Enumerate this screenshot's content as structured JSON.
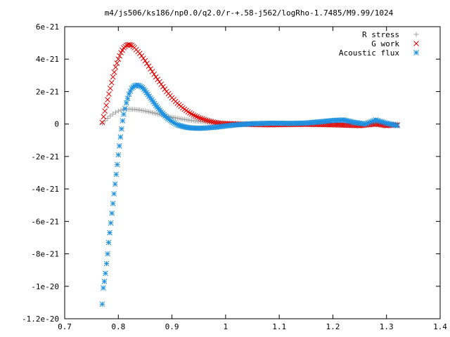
{
  "chart_data": {
    "type": "scatter",
    "title": "m4/js506/ks186/np0.0/q2.0/r-+.58-j562/logRho-1.7485/M9.99/1024",
    "xlabel": "",
    "ylabel": "",
    "xlim": [
      0.7,
      1.4
    ],
    "ylim": [
      -1.2e-20,
      6e-21
    ],
    "grid": false,
    "legend_position": "top-right",
    "x_ticks": [
      0.7,
      0.8,
      0.9,
      1.0,
      1.1,
      1.2,
      1.3,
      1.4
    ],
    "x_tick_labels": [
      "0.7",
      "0.8",
      "0.9",
      "1",
      "1.1",
      "1.2",
      "1.3",
      "1.4"
    ],
    "y_ticks": [
      6e-21,
      4e-21,
      2e-21,
      0,
      -2e-21,
      -4e-21,
      -6e-21,
      -8e-21,
      -1e-20,
      -1.2e-20
    ],
    "y_tick_labels": [
      "6e-21",
      "4e-21",
      "2e-21",
      "0",
      "-2e-21",
      "-4e-21",
      "-6e-21",
      "-8e-21",
      "-1e-20",
      "-1.2e-20"
    ],
    "series": [
      {
        "name": "R stress",
        "marker": "plus",
        "color": "#a0a0a0",
        "x": [
          0.77,
          0.775,
          0.78,
          0.785,
          0.79,
          0.795,
          0.8,
          0.805,
          0.81,
          0.815,
          0.82,
          0.83,
          0.84,
          0.85,
          0.86,
          0.87,
          0.88,
          0.89,
          0.9,
          0.92,
          0.94,
          0.96,
          0.98,
          1.0,
          1.05,
          1.1,
          1.15,
          1.2,
          1.25,
          1.3,
          1.32
        ],
        "y": [
          5e-23,
          2e-22,
          3.5e-22,
          5e-22,
          6.2e-22,
          7.2e-22,
          8e-22,
          8.6e-22,
          9e-22,
          9.2e-22,
          9.2e-22,
          9e-22,
          8.6e-22,
          8e-22,
          7.3e-22,
          6.5e-22,
          5.7e-22,
          4.9e-22,
          4.2e-22,
          3e-22,
          2e-22,
          1.3e-22,
          8e-23,
          5e-23,
          3e-23,
          2e-23,
          1e-23,
          0.0,
          0.0,
          0.0,
          0.0
        ]
      },
      {
        "name": "G work",
        "marker": "cross",
        "color": "#e00000",
        "x": [
          0.77,
          0.775,
          0.78,
          0.785,
          0.79,
          0.795,
          0.8,
          0.805,
          0.81,
          0.815,
          0.82,
          0.825,
          0.83,
          0.84,
          0.85,
          0.86,
          0.87,
          0.88,
          0.89,
          0.9,
          0.91,
          0.92,
          0.93,
          0.94,
          0.95,
          0.96,
          0.97,
          0.98,
          0.99,
          1.0,
          1.02,
          1.05,
          1.08,
          1.1,
          1.15,
          1.2,
          1.25,
          1.28,
          1.3,
          1.32
        ],
        "y": [
          1e-22,
          8e-22,
          1.5e-21,
          2.2e-21,
          2.9e-21,
          3.5e-21,
          4e-21,
          4.4e-21,
          4.7e-21,
          4.85e-21,
          4.9e-21,
          4.85e-21,
          4.7e-21,
          4.35e-21,
          3.9e-21,
          3.4e-21,
          2.9e-21,
          2.45e-21,
          2e-21,
          1.62e-21,
          1.28e-21,
          1e-21,
          7.5e-22,
          5.5e-22,
          4e-22,
          2.8e-22,
          1.8e-22,
          1e-22,
          5e-23,
          2e-23,
          0.0,
          -3e-23,
          -5e-23,
          -4e-23,
          -2e-23,
          -5e-23,
          -1e-22,
          0.0,
          -1e-22,
          -5e-23
        ]
      },
      {
        "name": "Acoustic flux",
        "marker": "star",
        "color": "#1e90e0",
        "x": [
          0.77,
          0.772,
          0.774,
          0.776,
          0.778,
          0.78,
          0.782,
          0.784,
          0.786,
          0.788,
          0.79,
          0.792,
          0.794,
          0.796,
          0.798,
          0.8,
          0.802,
          0.804,
          0.806,
          0.808,
          0.81,
          0.815,
          0.82,
          0.825,
          0.83,
          0.835,
          0.84,
          0.845,
          0.85,
          0.86,
          0.87,
          0.88,
          0.89,
          0.9,
          0.91,
          0.92,
          0.93,
          0.94,
          0.95,
          0.96,
          0.98,
          1.0,
          1.02,
          1.05,
          1.08,
          1.1,
          1.12,
          1.15,
          1.18,
          1.2,
          1.22,
          1.24,
          1.26,
          1.28,
          1.3,
          1.32
        ],
        "y": [
          -1.11e-20,
          -1.01e-20,
          -9.7e-21,
          -9.2e-21,
          -8.6e-21,
          -8e-21,
          -7.3e-21,
          -6.7e-21,
          -6.1e-21,
          -5.5e-21,
          -4.9e-21,
          -4.3e-21,
          -3.7e-21,
          -3.1e-21,
          -2.5e-21,
          -1.9e-21,
          -1.35e-21,
          -8e-22,
          -3e-22,
          2e-22,
          6e-22,
          1.3e-21,
          1.85e-21,
          2.2e-21,
          2.35e-21,
          2.4e-21,
          2.35e-21,
          2.25e-21,
          2.05e-21,
          1.6e-21,
          1.15e-21,
          7.5e-22,
          4e-22,
          1.5e-22,
          -5e-23,
          -1.5e-22,
          -2.2e-22,
          -2.5e-22,
          -2.6e-22,
          -2.5e-22,
          -2e-22,
          -1.2e-22,
          -5e-23,
          2e-23,
          5e-23,
          5e-23,
          4e-23,
          6e-23,
          1.5e-22,
          2.2e-22,
          2.5e-22,
          1e-22,
          0.0,
          2.5e-22,
          5e-23,
          -1e-22
        ]
      }
    ]
  }
}
